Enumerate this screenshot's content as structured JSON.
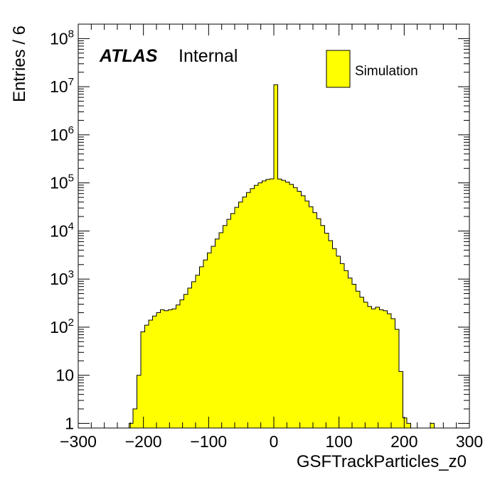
{
  "chart_data": {
    "type": "bar",
    "subtype": "histogram",
    "title": "",
    "xlabel": "GSFTrackParticles_z0",
    "ylabel": "Entries / 6",
    "xlim": [
      -300,
      300
    ],
    "ylim": [
      0.8,
      200000000
    ],
    "yscale": "log",
    "grid": false,
    "legend_position": "top-right",
    "atlas_label": "ATLAS",
    "atlas_sublabel": "Internal",
    "x_tick_labels": [
      "−300",
      "−200",
      "−100",
      "0",
      "100",
      "200",
      "300"
    ],
    "y_tick_labels": [
      {
        "base": "1",
        "exp": ""
      },
      {
        "base": "10",
        "exp": ""
      },
      {
        "base": "10",
        "exp": "2"
      },
      {
        "base": "10",
        "exp": "3"
      },
      {
        "base": "10",
        "exp": "4"
      },
      {
        "base": "10",
        "exp": "5"
      },
      {
        "base": "10",
        "exp": "6"
      },
      {
        "base": "10",
        "exp": "7"
      },
      {
        "base": "10",
        "exp": "8"
      }
    ],
    "bin_width": 6,
    "series": [
      {
        "name": "Simulation",
        "color": "#ffff00",
        "edge_color": "#000000",
        "bins": [
          {
            "x": -219,
            "y": 1
          },
          {
            "x": -213,
            "y": 2
          },
          {
            "x": -207,
            "y": 10
          },
          {
            "x": -201,
            "y": 80
          },
          {
            "x": -195,
            "y": 110
          },
          {
            "x": -189,
            "y": 140
          },
          {
            "x": -183,
            "y": 170
          },
          {
            "x": -177,
            "y": 200
          },
          {
            "x": -171,
            "y": 230
          },
          {
            "x": -165,
            "y": 220
          },
          {
            "x": -159,
            "y": 230
          },
          {
            "x": -153,
            "y": 240
          },
          {
            "x": -147,
            "y": 290
          },
          {
            "x": -141,
            "y": 370
          },
          {
            "x": -135,
            "y": 480
          },
          {
            "x": -129,
            "y": 650
          },
          {
            "x": -123,
            "y": 880
          },
          {
            "x": -117,
            "y": 1200
          },
          {
            "x": -111,
            "y": 1800
          },
          {
            "x": -105,
            "y": 2500
          },
          {
            "x": -99,
            "y": 3500
          },
          {
            "x": -93,
            "y": 4800
          },
          {
            "x": -87,
            "y": 6800
          },
          {
            "x": -81,
            "y": 9200
          },
          {
            "x": -75,
            "y": 13000
          },
          {
            "x": -69,
            "y": 17500
          },
          {
            "x": -63,
            "y": 23000
          },
          {
            "x": -57,
            "y": 31000
          },
          {
            "x": -51,
            "y": 40000
          },
          {
            "x": -45,
            "y": 51000
          },
          {
            "x": -39,
            "y": 63000
          },
          {
            "x": -33,
            "y": 76000
          },
          {
            "x": -27,
            "y": 89000
          },
          {
            "x": -21,
            "y": 100000
          },
          {
            "x": -15,
            "y": 110000
          },
          {
            "x": -9,
            "y": 118000
          },
          {
            "x": -3,
            "y": 121000
          },
          {
            "x": 3,
            "y": 11000000
          },
          {
            "x": 9,
            "y": 120000
          },
          {
            "x": 15,
            "y": 113000
          },
          {
            "x": 21,
            "y": 104000
          },
          {
            "x": 27,
            "y": 93000
          },
          {
            "x": 33,
            "y": 80000
          },
          {
            "x": 39,
            "y": 67000
          },
          {
            "x": 45,
            "y": 54000
          },
          {
            "x": 51,
            "y": 42000
          },
          {
            "x": 57,
            "y": 32000
          },
          {
            "x": 63,
            "y": 24000
          },
          {
            "x": 69,
            "y": 18000
          },
          {
            "x": 75,
            "y": 13000
          },
          {
            "x": 81,
            "y": 9000
          },
          {
            "x": 87,
            "y": 6300
          },
          {
            "x": 93,
            "y": 4300
          },
          {
            "x": 99,
            "y": 3000
          },
          {
            "x": 105,
            "y": 2100
          },
          {
            "x": 111,
            "y": 1500
          },
          {
            "x": 117,
            "y": 1050
          },
          {
            "x": 123,
            "y": 780
          },
          {
            "x": 129,
            "y": 560
          },
          {
            "x": 135,
            "y": 420
          },
          {
            "x": 141,
            "y": 330
          },
          {
            "x": 147,
            "y": 270
          },
          {
            "x": 153,
            "y": 240
          },
          {
            "x": 159,
            "y": 260
          },
          {
            "x": 165,
            "y": 230
          },
          {
            "x": 171,
            "y": 220
          },
          {
            "x": 177,
            "y": 190
          },
          {
            "x": 183,
            "y": 150
          },
          {
            "x": 189,
            "y": 90
          },
          {
            "x": 195,
            "y": 12
          },
          {
            "x": 201,
            "y": 1.3
          },
          {
            "x": 207,
            "y": 1
          },
          {
            "x": 243,
            "y": 1
          }
        ]
      }
    ]
  }
}
